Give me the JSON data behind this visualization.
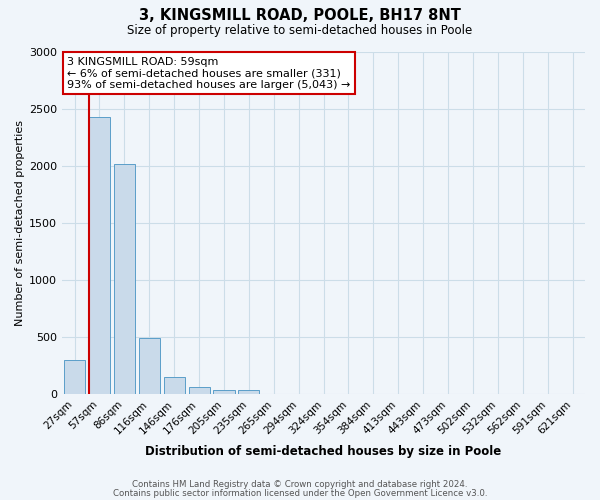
{
  "title": "3, KINGSMILL ROAD, POOLE, BH17 8NT",
  "subtitle": "Size of property relative to semi-detached houses in Poole",
  "xlabel": "Distribution of semi-detached houses by size in Poole",
  "ylabel": "Number of semi-detached properties",
  "footnote1": "Contains HM Land Registry data © Crown copyright and database right 2024.",
  "footnote2": "Contains public sector information licensed under the Open Government Licence v3.0.",
  "annotation_title": "3 KINGSMILL ROAD: 59sqm",
  "annotation_line1": "← 6% of semi-detached houses are smaller (331)",
  "annotation_line2": "93% of semi-detached houses are larger (5,043) →",
  "bar_labels": [
    "27sqm",
    "57sqm",
    "86sqm",
    "116sqm",
    "146sqm",
    "176sqm",
    "205sqm",
    "235sqm",
    "265sqm",
    "294sqm",
    "324sqm",
    "354sqm",
    "384sqm",
    "413sqm",
    "443sqm",
    "473sqm",
    "502sqm",
    "532sqm",
    "562sqm",
    "591sqm",
    "621sqm"
  ],
  "bar_values": [
    305,
    2430,
    2020,
    490,
    155,
    65,
    40,
    35,
    0,
    0,
    0,
    0,
    0,
    0,
    0,
    0,
    0,
    0,
    0,
    0,
    0
  ],
  "bar_color": "#c9daea",
  "bar_edge_color": "#5a9ec9",
  "vline_index": 1,
  "vline_color": "#cc0000",
  "ylim": [
    0,
    3000
  ],
  "yticks": [
    0,
    500,
    1000,
    1500,
    2000,
    2500,
    3000
  ],
  "annotation_box_color": "#ffffff",
  "annotation_box_edge": "#cc0000",
  "grid_color": "#ccdde8",
  "background_color": "#f0f5fa",
  "title_fontsize": 10.5,
  "subtitle_fontsize": 8.5
}
